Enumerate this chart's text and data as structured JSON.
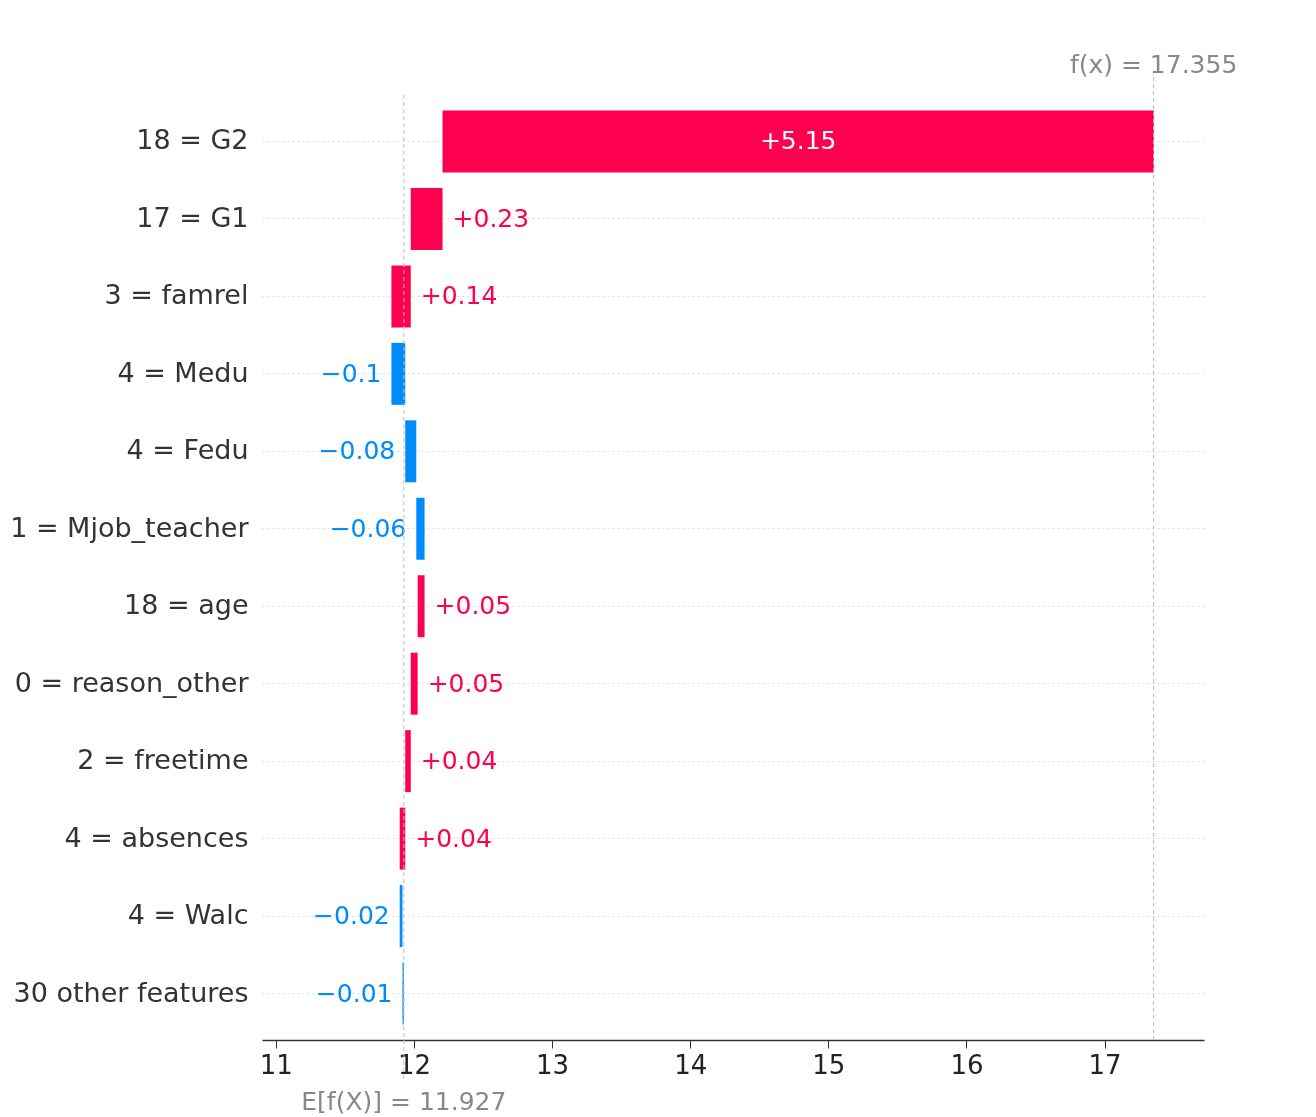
{
  "chart_data": {
    "type": "bar",
    "orientation": "horizontal",
    "categories": [
      "18 = G2",
      "17 = G1",
      "3 = famrel",
      "4 = Medu",
      "4 = Fedu",
      "1 = Mjob_teacher",
      "18 = age",
      "0 = reason_other",
      "2 = freetime",
      "4 = absences",
      "4 = Walc",
      "30 other features"
    ],
    "values": [
      5.15,
      0.23,
      0.14,
      -0.1,
      -0.08,
      -0.06,
      0.05,
      0.05,
      0.04,
      0.04,
      -0.02,
      -0.01
    ],
    "base": [
      12.207,
      11.977,
      11.837,
      11.937,
      12.017,
      12.077,
      12.027,
      11.977,
      11.937,
      11.897,
      11.917,
      11.927
    ],
    "colors": [
      "#ff0051",
      "#ff0051",
      "#ff0051",
      "#008bfb",
      "#008bfb",
      "#008bfb",
      "#ff0051",
      "#ff0051",
      "#ff0051",
      "#ff0051",
      "#008bfb",
      "#008bfb"
    ],
    "value_labels": [
      "+5.15",
      "+0.23",
      "+0.14",
      "−0.1",
      "−0.08",
      "−0.06",
      "+0.05",
      "+0.05",
      "+0.04",
      "+0.04",
      "−0.02",
      "−0.01"
    ],
    "xlim": [
      10.9,
      17.72
    ],
    "xticks": [
      11,
      12,
      13,
      14,
      15,
      16,
      17
    ],
    "grid": "y",
    "ref_lines": [
      {
        "axis": "x",
        "value": 17.355,
        "label": "f(x) = 17.355",
        "line_style": "dashed",
        "color": "#bbbbbb"
      },
      {
        "axis": "x",
        "value": 11.927,
        "label": "E[f(X)] = 11.927",
        "line_style": "dashed",
        "color": "#bbbbbb"
      }
    ]
  }
}
